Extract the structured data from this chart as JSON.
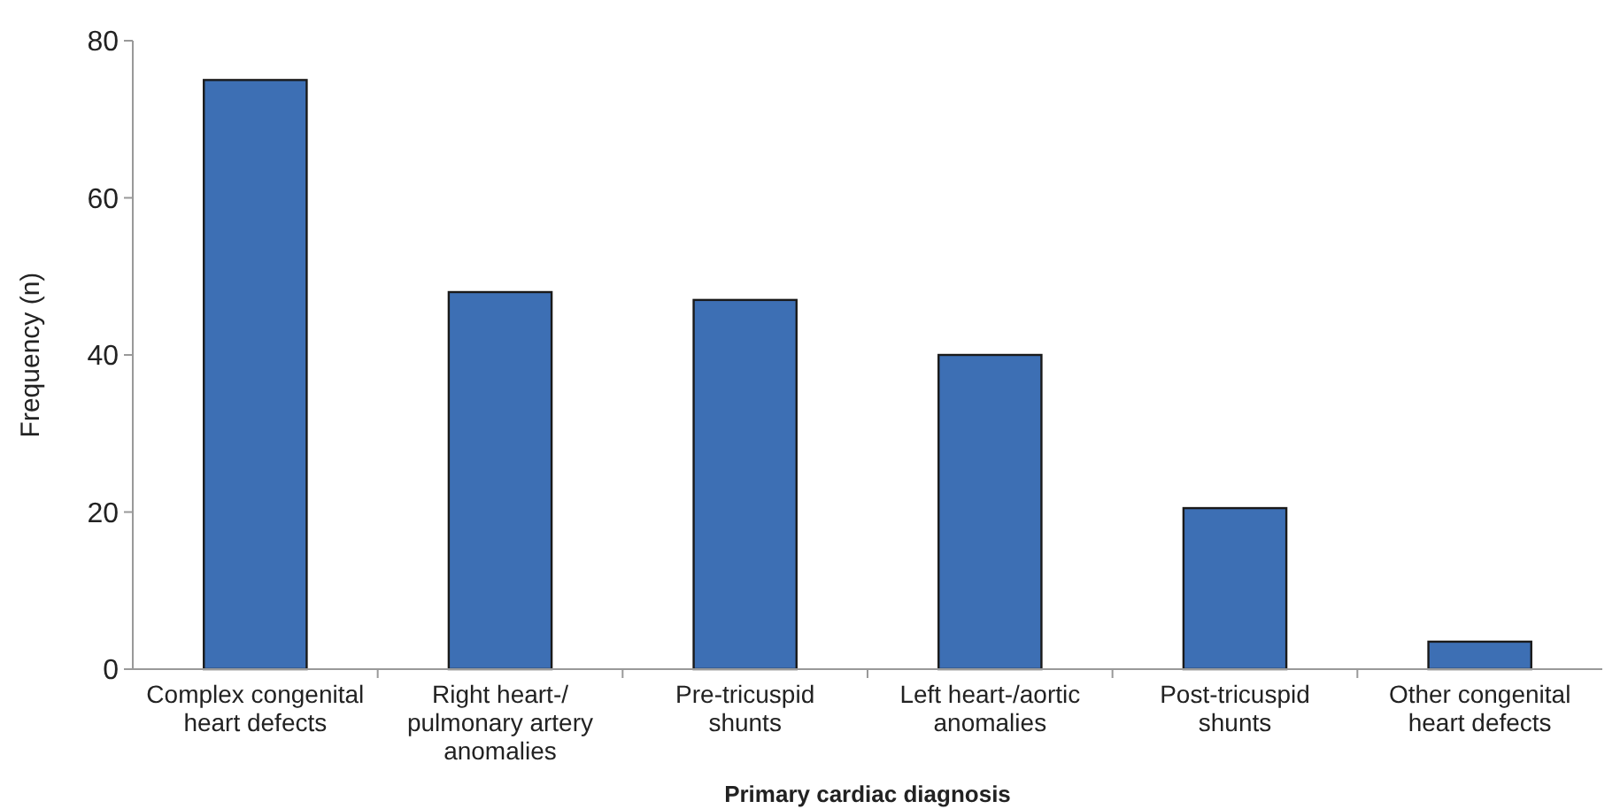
{
  "chart_data": {
    "type": "bar",
    "xlabel": "Primary cardiac diagnosis",
    "ylabel": "Frequency (n)",
    "categories": [
      "Complex congenital heart defects",
      "Right heart-/ pulmonary artery anomalies",
      "Pre-tricuspid shunts",
      "Left heart-/aortic anomalies",
      "Post-tricuspid shunts",
      "Other congenital heart defects"
    ],
    "values": [
      75,
      48,
      47,
      40,
      20.5,
      3.5
    ],
    "color": "#3d6fb4",
    "ylim": [
      0,
      80
    ],
    "yticks": [
      0,
      20,
      40,
      60,
      80
    ],
    "grid": false
  }
}
